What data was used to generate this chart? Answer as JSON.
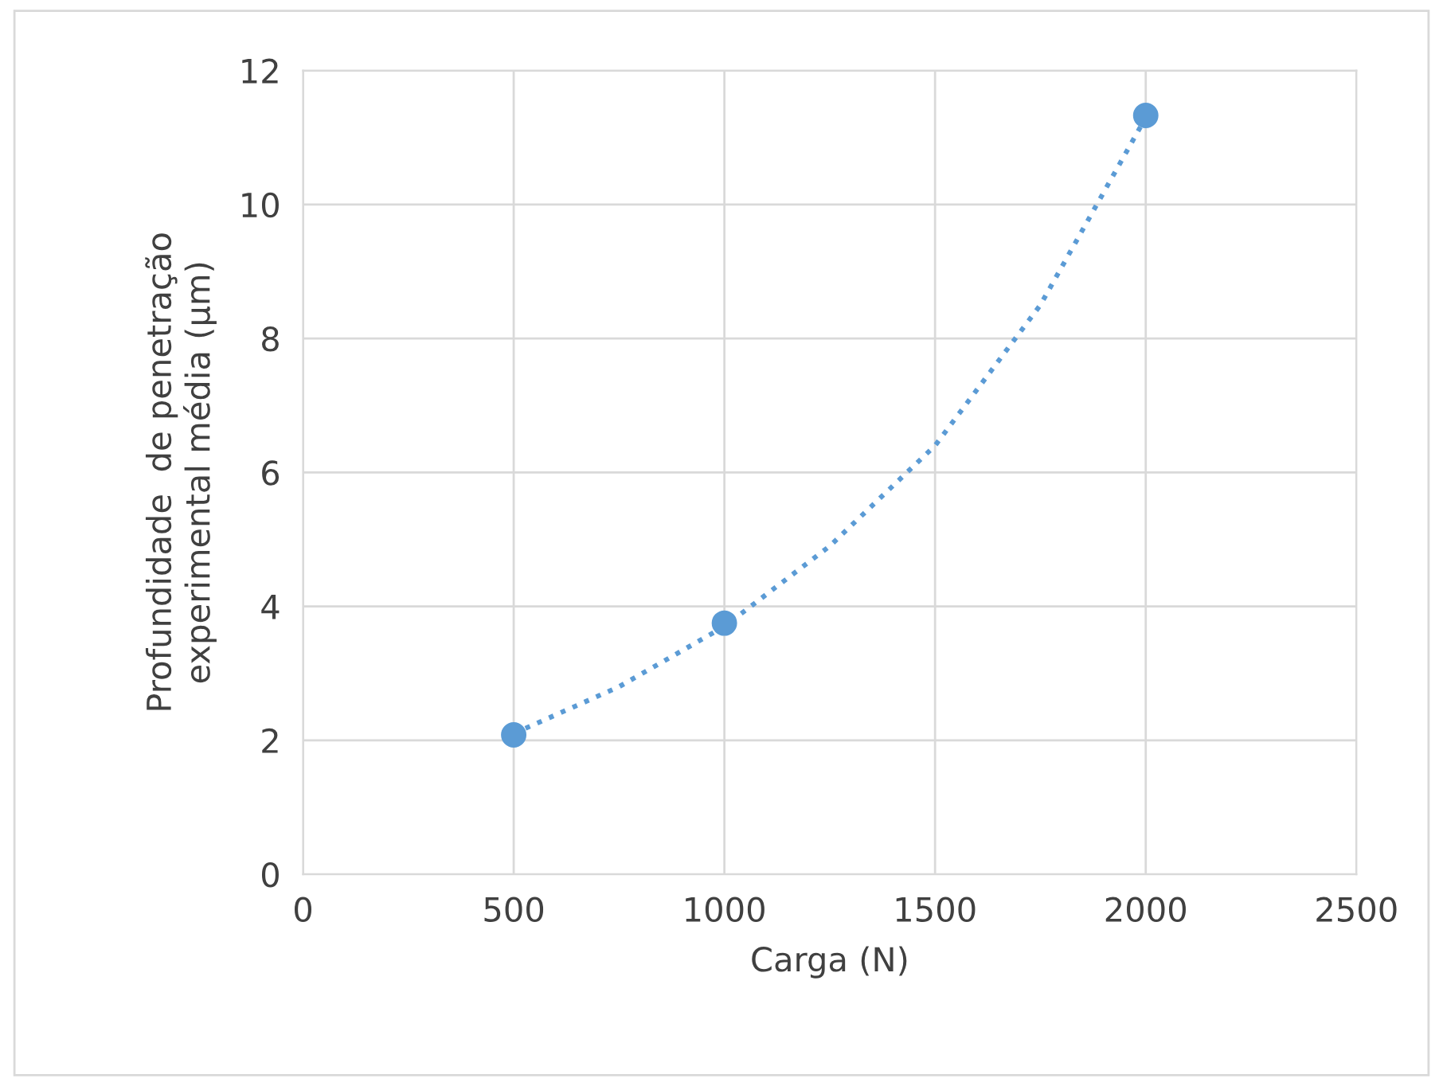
{
  "chart_data": {
    "type": "scatter",
    "xlabel": "Carga (N)",
    "ylabel": "Profundidade  de penetração\nexperimental média (µm)",
    "xlim": [
      0,
      2500
    ],
    "xticks": [
      0,
      500,
      1000,
      1500,
      2000,
      2500
    ],
    "ylim": [
      0,
      12
    ],
    "yticks": [
      0,
      2,
      4,
      6,
      8,
      10,
      12
    ],
    "grid": true,
    "marker": "circle",
    "series": [
      {
        "color": "#5b9bd5",
        "x": [
          500,
          1000,
          2000
        ],
        "values": [
          2.08,
          3.75,
          11.33
        ]
      },
      {
        "type": "line",
        "color": "#5b9bd5",
        "line_style": "dotted",
        "marker": "none",
        "x": [
          500,
          750,
          1000,
          1250,
          1500,
          1750,
          2000
        ],
        "values": [
          2.1,
          2.8,
          3.7,
          4.9,
          6.4,
          8.5,
          11.3
        ]
      }
    ]
  }
}
